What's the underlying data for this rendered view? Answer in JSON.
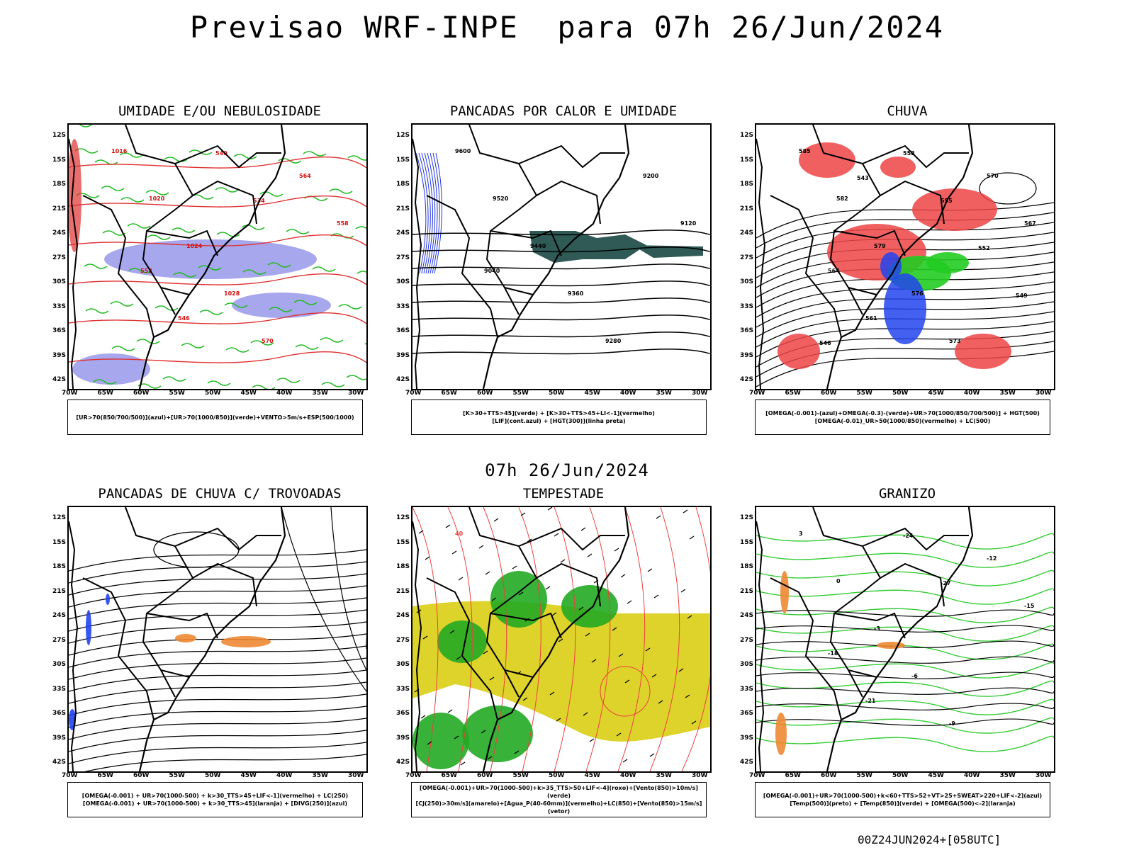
{
  "title": "Previsao WRF-INPE  para 07h 26/Jun/2024",
  "subtitle": "07h 26/Jun/2024",
  "footer": "00Z24JUN2024+[058UTC]",
  "lat_ticks": [
    "12S",
    "15S",
    "18S",
    "21S",
    "24S",
    "27S",
    "30S",
    "33S",
    "36S",
    "39S",
    "42S"
  ],
  "lon_ticks": [
    "70W",
    "65W",
    "60W",
    "55W",
    "50W",
    "45W",
    "40W",
    "35W",
    "30W"
  ],
  "panels": [
    {
      "title": "UMIDADE E/OU NEBULOSIDADE",
      "legend": [
        "[UR>70(850/700/500)](azul)+[UR>70(1000/850)](verde)+VENTO>5m/s+ESP(500/1000)"
      ],
      "contour_labels": [
        "1016",
        "1020",
        "1024",
        "1028",
        "570",
        "564",
        "558",
        "552",
        "546",
        "540",
        "534"
      ]
    },
    {
      "title": "PANCADAS POR CALOR E UMIDADE",
      "legend": [
        "[K>30+TTS>45](verde) + [K>30+TTS>45+LI<-1](vermelho)",
        "[LIF](cont.azul) + [HGT(300)](linha preta)"
      ],
      "contour_labels": [
        "9600",
        "9520",
        "9440",
        "9360",
        "9280",
        "9200",
        "9120",
        "9040"
      ]
    },
    {
      "title": "CHUVA",
      "legend": [
        "[OMEGA(-0.001)-(azul)+OMEGA(-0.3)-(verde)+UR>70(1000/850/700/500)] + HGT(500)",
        "[OMEGA(-0.01)_UR>50(1000/850)(vermelho) + LC(500)"
      ],
      "contour_labels": [
        "585",
        "582",
        "579",
        "576",
        "573",
        "570",
        "567",
        "564",
        "561",
        "558",
        "555",
        "552",
        "549",
        "546",
        "543"
      ]
    },
    {
      "title": "PANCADAS DE CHUVA C/ TROVOADAS",
      "legend": [
        "[OMEGA(-0.001) + UR>70(1000-500) + k>30_TTS>45+LIF<-1](vermelho) + LC(250)",
        "[OMEGA(-0.001) + UR>70(1000-500) + k>30_TTS>45](laranja) + [DIVG(250)](azul)"
      ],
      "contour_labels": []
    },
    {
      "title": "TEMPESTADE",
      "legend": [
        "[OMEGA(-0.001)+UR>70(1000-500)+k>35_TTS>50+LIF<-4](roxo)+[Vento(850)>10m/s](verde)",
        "[CJ(250)>30m/s](amarelo)+[Agua_P(40-60mm)](vermelho)+LC(850)+[Vento(850)>15m/s](vetor)"
      ],
      "contour_labels": [
        "40"
      ]
    },
    {
      "title": "GRANIZO",
      "legend": [
        "[OMEGA(-0.001)+UR>70(1000-500)+k<60+TTS>52+VT>25+SWEAT>220+LIF<-2](azul)",
        "[Temp(500)](preto) + [Temp(850)](verde) + [OMEGA(500)<-2](laranja)"
      ],
      "contour_labels": [
        "3",
        "0",
        "-3",
        "-6",
        "-9",
        "-12",
        "-15",
        "-18",
        "-21",
        "-24",
        "-27"
      ]
    }
  ]
}
